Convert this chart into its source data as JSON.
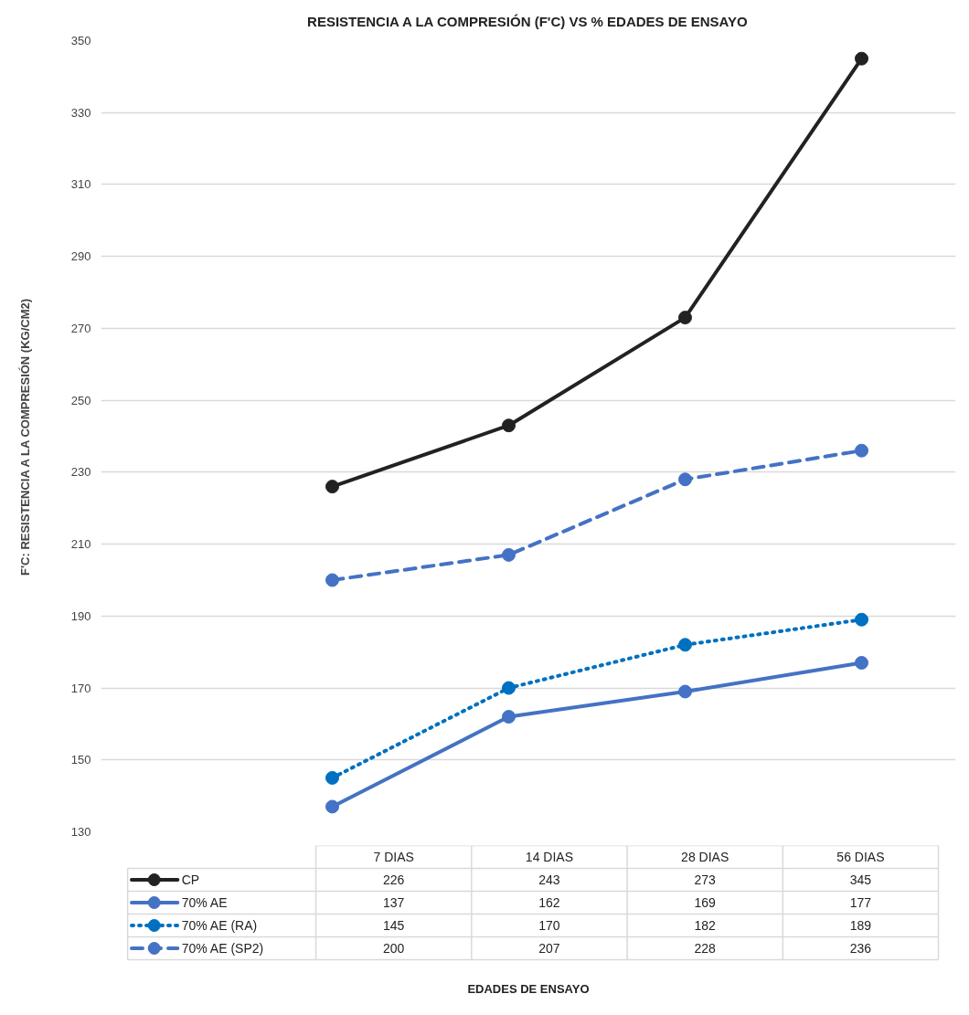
{
  "chart_data": {
    "type": "line",
    "title": "RESISTENCIA A LA COMPRESIÓN (F'C) VS % EDADES DE ENSAYO",
    "annotations": [
      "EDADES DE ENSAYO"
    ],
    "ylabel": "F'C: RESISTENCIA A LA COMPRESIÓN (KG/CM2)",
    "categories": [
      "7 DIAS",
      "14 DIAS",
      "28 DIAS",
      "56 DIAS"
    ],
    "series": [
      {
        "name": "CP",
        "color": "#222222",
        "line_style": "solid",
        "values": [
          226,
          243,
          273,
          345
        ]
      },
      {
        "name": "70% AE",
        "color": "#4472c4",
        "line_style": "solid",
        "values": [
          137,
          162,
          169,
          177
        ]
      },
      {
        "name": "70% AE (RA)",
        "color": "#0070c0",
        "line_style": "dotted",
        "values": [
          145,
          170,
          182,
          189
        ]
      },
      {
        "name": "70% AE (SP2)",
        "color": "#4472c4",
        "line_style": "dashed",
        "values": [
          200,
          207,
          228,
          236
        ]
      }
    ],
    "ylim": [
      130,
      350
    ],
    "yticks": [
      130,
      150,
      170,
      190,
      210,
      230,
      250,
      270,
      290,
      310,
      330,
      350
    ],
    "grid": "y",
    "legend": "bottom",
    "marker": "circle",
    "data_labels": true
  }
}
